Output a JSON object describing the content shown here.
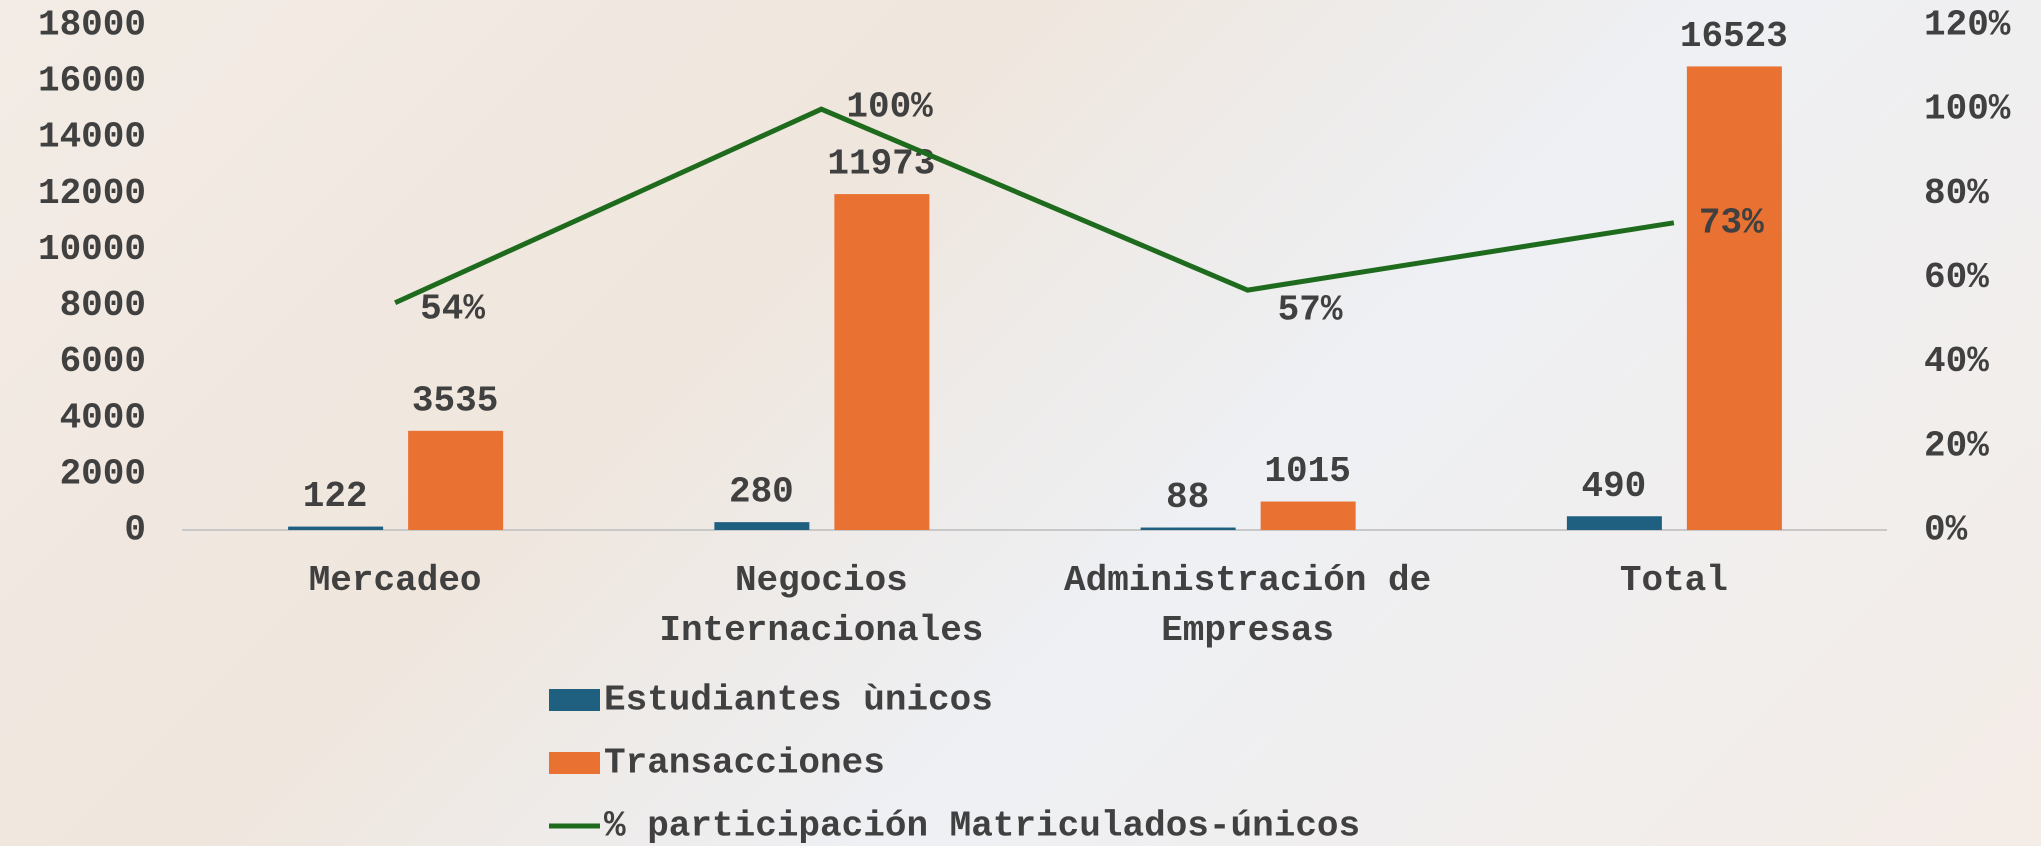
{
  "chart_data": {
    "type": "bar",
    "categories": [
      "Mercadeo",
      "Negocios Internacionales",
      "Administración de Empresas",
      "Total"
    ],
    "series": [
      {
        "name": "Estudiantes ùnicos",
        "color": "#1f5f80",
        "values": [
          122,
          280,
          88,
          490
        ]
      },
      {
        "name": "Transacciones",
        "color": "#e97132",
        "values": [
          3535,
          11973,
          1015,
          16523
        ]
      },
      {
        "name": "% participación Matriculados-únicos",
        "type": "line",
        "axis": "y2",
        "color": "#1e6b1e",
        "values": [
          54,
          100,
          57,
          73
        ],
        "value_labels": [
          "54%",
          "100%",
          "57%",
          "73%"
        ]
      }
    ],
    "ylim": [
      0,
      18000
    ],
    "yticks": [
      0,
      2000,
      4000,
      6000,
      8000,
      10000,
      12000,
      14000,
      16000,
      18000
    ],
    "y2lim": [
      0,
      120
    ],
    "y2ticks": [
      {
        "value": 0,
        "label": "0%"
      },
      {
        "value": 20,
        "label": "20%"
      },
      {
        "value": 40,
        "label": "40%"
      },
      {
        "value": 60,
        "label": "60%"
      },
      {
        "value": 80,
        "label": "80%"
      },
      {
        "value": 100,
        "label": "100%"
      },
      {
        "value": 120,
        "label": "120%"
      }
    ]
  }
}
